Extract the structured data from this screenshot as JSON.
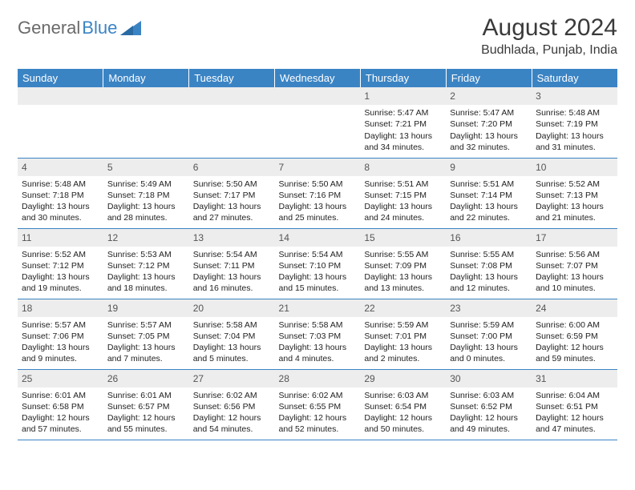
{
  "brand": {
    "word1": "General",
    "word2": "Blue"
  },
  "title": "August 2024",
  "location": "Budhlada, Punjab, India",
  "colors": {
    "header_bg": "#3b84c4",
    "header_text": "#ffffff",
    "daynum_bg": "#ededed",
    "rule": "#3b84c4",
    "logo_gray": "#6a6a6a",
    "logo_blue": "#3b84c4"
  },
  "layout": {
    "cols": 7,
    "rows": 5,
    "first_day_col": 4
  },
  "weekdays": [
    "Sunday",
    "Monday",
    "Tuesday",
    "Wednesday",
    "Thursday",
    "Friday",
    "Saturday"
  ],
  "days": [
    {
      "n": 1,
      "sunrise": "5:47 AM",
      "sunset": "7:21 PM",
      "daylight": "13 hours and 34 minutes."
    },
    {
      "n": 2,
      "sunrise": "5:47 AM",
      "sunset": "7:20 PM",
      "daylight": "13 hours and 32 minutes."
    },
    {
      "n": 3,
      "sunrise": "5:48 AM",
      "sunset": "7:19 PM",
      "daylight": "13 hours and 31 minutes."
    },
    {
      "n": 4,
      "sunrise": "5:48 AM",
      "sunset": "7:18 PM",
      "daylight": "13 hours and 30 minutes."
    },
    {
      "n": 5,
      "sunrise": "5:49 AM",
      "sunset": "7:18 PM",
      "daylight": "13 hours and 28 minutes."
    },
    {
      "n": 6,
      "sunrise": "5:50 AM",
      "sunset": "7:17 PM",
      "daylight": "13 hours and 27 minutes."
    },
    {
      "n": 7,
      "sunrise": "5:50 AM",
      "sunset": "7:16 PM",
      "daylight": "13 hours and 25 minutes."
    },
    {
      "n": 8,
      "sunrise": "5:51 AM",
      "sunset": "7:15 PM",
      "daylight": "13 hours and 24 minutes."
    },
    {
      "n": 9,
      "sunrise": "5:51 AM",
      "sunset": "7:14 PM",
      "daylight": "13 hours and 22 minutes."
    },
    {
      "n": 10,
      "sunrise": "5:52 AM",
      "sunset": "7:13 PM",
      "daylight": "13 hours and 21 minutes."
    },
    {
      "n": 11,
      "sunrise": "5:52 AM",
      "sunset": "7:12 PM",
      "daylight": "13 hours and 19 minutes."
    },
    {
      "n": 12,
      "sunrise": "5:53 AM",
      "sunset": "7:12 PM",
      "daylight": "13 hours and 18 minutes."
    },
    {
      "n": 13,
      "sunrise": "5:54 AM",
      "sunset": "7:11 PM",
      "daylight": "13 hours and 16 minutes."
    },
    {
      "n": 14,
      "sunrise": "5:54 AM",
      "sunset": "7:10 PM",
      "daylight": "13 hours and 15 minutes."
    },
    {
      "n": 15,
      "sunrise": "5:55 AM",
      "sunset": "7:09 PM",
      "daylight": "13 hours and 13 minutes."
    },
    {
      "n": 16,
      "sunrise": "5:55 AM",
      "sunset": "7:08 PM",
      "daylight": "13 hours and 12 minutes."
    },
    {
      "n": 17,
      "sunrise": "5:56 AM",
      "sunset": "7:07 PM",
      "daylight": "13 hours and 10 minutes."
    },
    {
      "n": 18,
      "sunrise": "5:57 AM",
      "sunset": "7:06 PM",
      "daylight": "13 hours and 9 minutes."
    },
    {
      "n": 19,
      "sunrise": "5:57 AM",
      "sunset": "7:05 PM",
      "daylight": "13 hours and 7 minutes."
    },
    {
      "n": 20,
      "sunrise": "5:58 AM",
      "sunset": "7:04 PM",
      "daylight": "13 hours and 5 minutes."
    },
    {
      "n": 21,
      "sunrise": "5:58 AM",
      "sunset": "7:03 PM",
      "daylight": "13 hours and 4 minutes."
    },
    {
      "n": 22,
      "sunrise": "5:59 AM",
      "sunset": "7:01 PM",
      "daylight": "13 hours and 2 minutes."
    },
    {
      "n": 23,
      "sunrise": "5:59 AM",
      "sunset": "7:00 PM",
      "daylight": "13 hours and 0 minutes."
    },
    {
      "n": 24,
      "sunrise": "6:00 AM",
      "sunset": "6:59 PM",
      "daylight": "12 hours and 59 minutes."
    },
    {
      "n": 25,
      "sunrise": "6:01 AM",
      "sunset": "6:58 PM",
      "daylight": "12 hours and 57 minutes."
    },
    {
      "n": 26,
      "sunrise": "6:01 AM",
      "sunset": "6:57 PM",
      "daylight": "12 hours and 55 minutes."
    },
    {
      "n": 27,
      "sunrise": "6:02 AM",
      "sunset": "6:56 PM",
      "daylight": "12 hours and 54 minutes."
    },
    {
      "n": 28,
      "sunrise": "6:02 AM",
      "sunset": "6:55 PM",
      "daylight": "12 hours and 52 minutes."
    },
    {
      "n": 29,
      "sunrise": "6:03 AM",
      "sunset": "6:54 PM",
      "daylight": "12 hours and 50 minutes."
    },
    {
      "n": 30,
      "sunrise": "6:03 AM",
      "sunset": "6:52 PM",
      "daylight": "12 hours and 49 minutes."
    },
    {
      "n": 31,
      "sunrise": "6:04 AM",
      "sunset": "6:51 PM",
      "daylight": "12 hours and 47 minutes."
    }
  ],
  "labels": {
    "sunrise": "Sunrise:",
    "sunset": "Sunset:",
    "daylight": "Daylight:"
  }
}
